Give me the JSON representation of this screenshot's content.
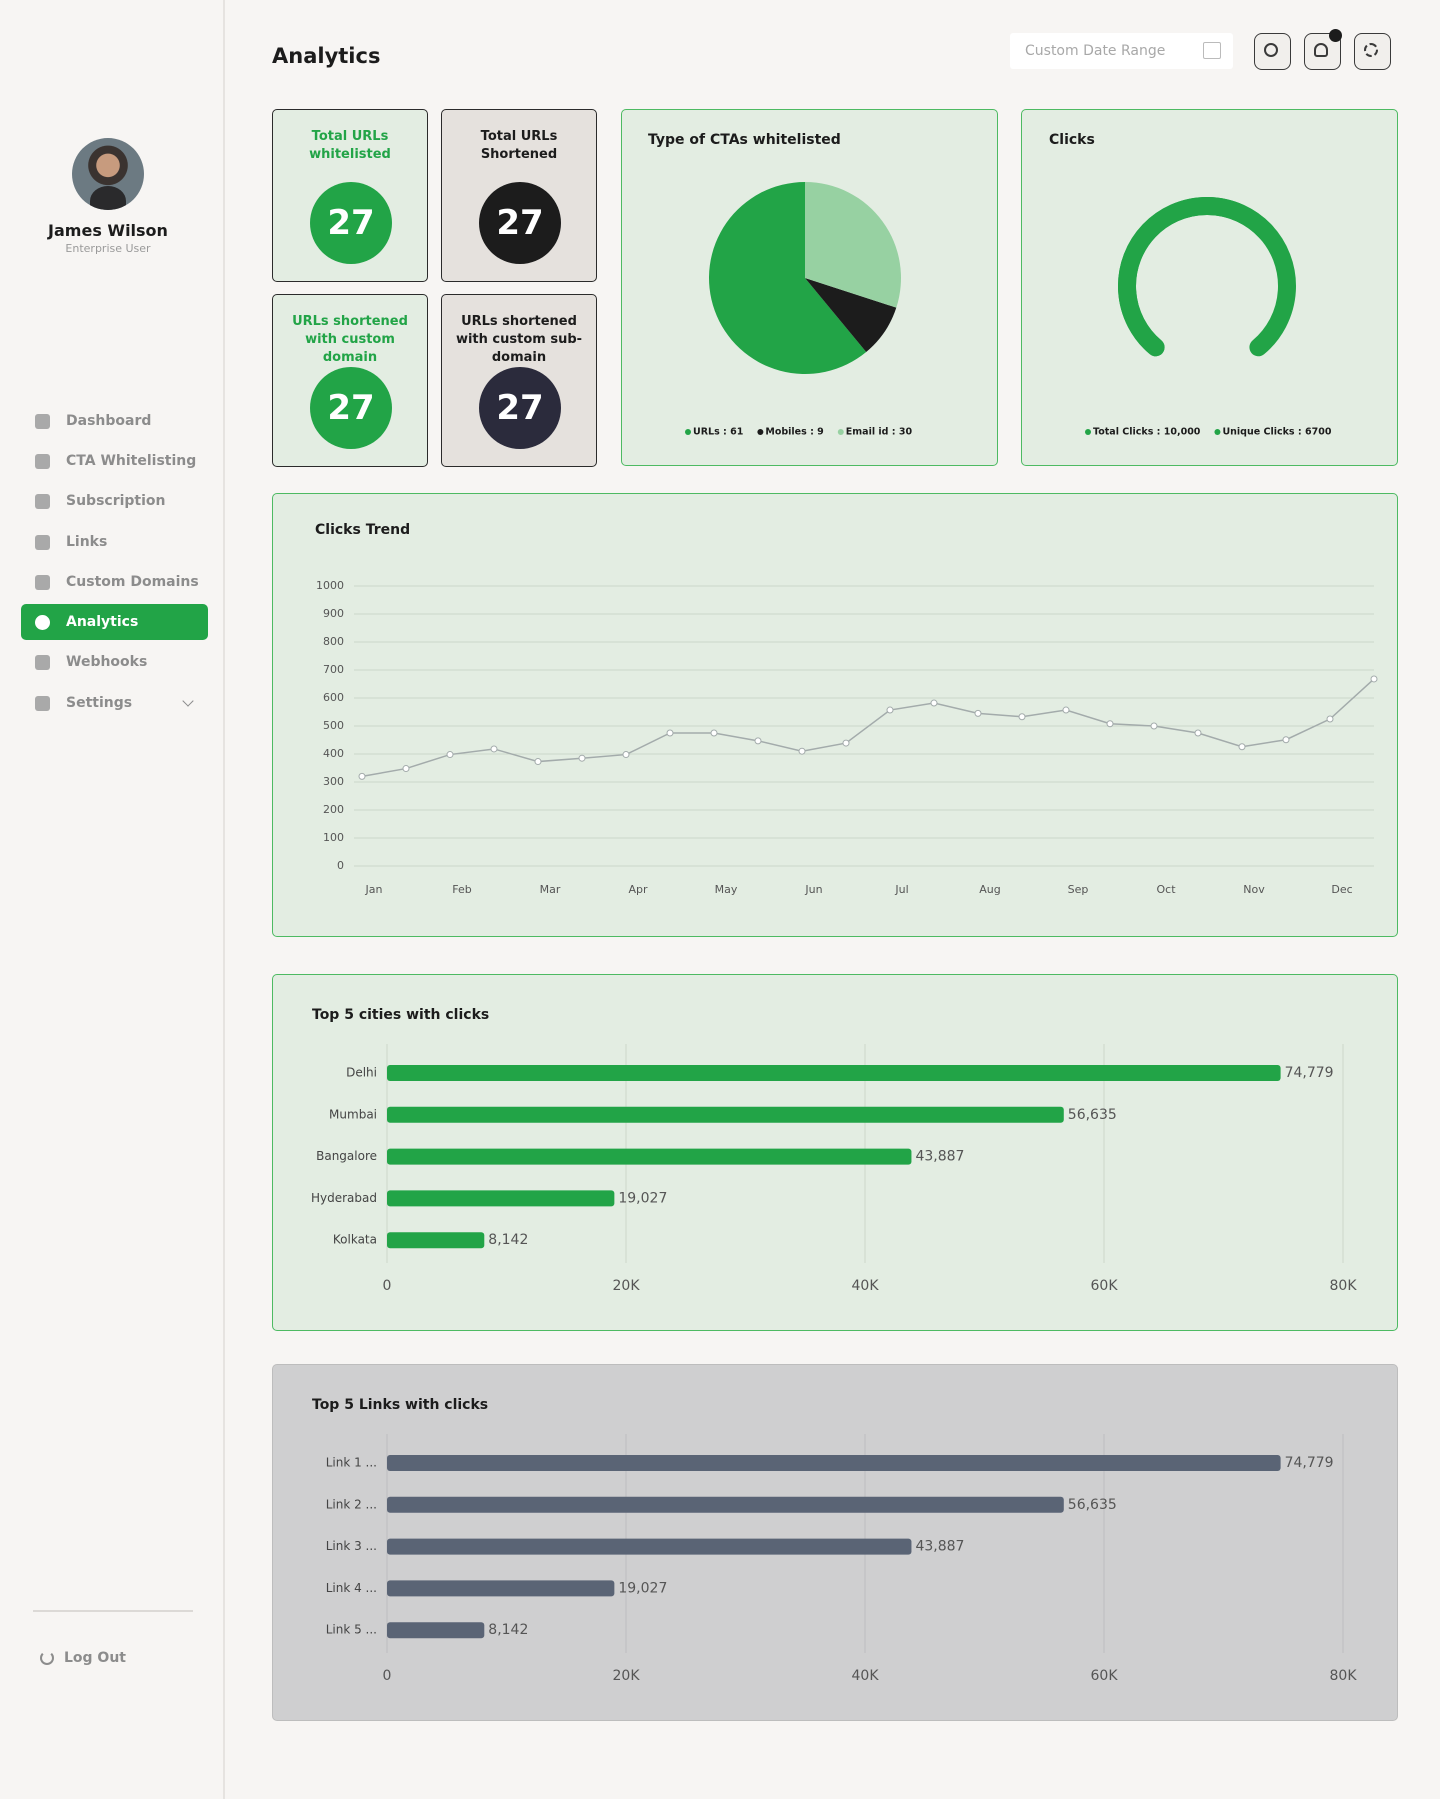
{
  "sidebar": {
    "user_name": "James Wilson",
    "user_role": "Enterprise User",
    "nav": [
      "Dashboard",
      "CTA Whitelisting",
      "Subscription",
      "Links",
      "Custom Domains",
      "Analytics",
      "Webhooks",
      "Settings"
    ],
    "logout": "Log Out"
  },
  "header": {
    "title": "Analytics",
    "date_placeholder": "Custom Date Range"
  },
  "cards": [
    {
      "title": "Total URLs whitelisted",
      "value": "27"
    },
    {
      "title": "Total URLs Shortened",
      "value": "27"
    },
    {
      "title": "URLs shortened with custom domain",
      "value": "27"
    },
    {
      "title": "URLs shortened with custom sub-domain",
      "value": "27"
    }
  ],
  "chart_data": [
    {
      "type": "pie",
      "title": "Type of CTAs whitelisted",
      "categories": [
        "URLs",
        "Mobiles",
        "Email id"
      ],
      "values": [
        61,
        9,
        30
      ],
      "value_labels": [
        "URLs : 61",
        "Mobiles : 9",
        "Email id : 30"
      ],
      "colors": [
        "#22a447",
        "#1c1c1c",
        "#97d1a2"
      ],
      "direction": "counterclockwise"
    },
    {
      "type": "gauge",
      "title": "Clicks",
      "categories": [
        "Total Clicks",
        "Unique Clicks"
      ],
      "values": [
        10000,
        6700
      ],
      "value_labels": [
        "Total Clicks : 10,000",
        "Unique Clicks : 6700"
      ],
      "colors": [
        "#22a447",
        "#22a447"
      ]
    },
    {
      "type": "line",
      "title": "Clicks Trend",
      "categories": [
        "Jan",
        null,
        "Feb",
        null,
        "Mar",
        null,
        "Apr",
        null,
        "May",
        null,
        "Jun",
        null,
        "Jul",
        null,
        "Aug",
        null,
        "Sep",
        null,
        "Oct",
        null,
        "Nov",
        null,
        "Dec",
        null
      ],
      "values": [
        320,
        348,
        398,
        418,
        373,
        385,
        398,
        475,
        475,
        447,
        410,
        439,
        557,
        582,
        545,
        533,
        557,
        508,
        500,
        475,
        426,
        451,
        525,
        668
      ],
      "color": "#a3abab",
      "ylim": [
        0,
        1000
      ],
      "yticks": [
        0,
        100,
        200,
        300,
        400,
        500,
        600,
        700,
        800,
        900,
        1000
      ],
      "grid": true
    },
    {
      "type": "hbar",
      "title": "Top 5 cities with clicks",
      "categories": [
        "Delhi",
        "Mumbai",
        "Bangalore",
        "Hyderabad",
        "Kolkata"
      ],
      "values": [
        74779,
        56635,
        43887,
        19027,
        8142
      ],
      "value_labels": [
        "74,779",
        "56,635",
        "43,887",
        "19,027",
        "8,142"
      ],
      "color": "#22a447",
      "xlim": [
        0,
        80000
      ],
      "xticks": [
        0,
        {
          "value": 20000,
          "label": "20K"
        },
        {
          "value": 40000,
          "label": "40K"
        },
        {
          "value": 60000,
          "label": "60K"
        },
        {
          "value": 80000,
          "label": "80K"
        }
      ],
      "grid": true
    },
    {
      "type": "hbar",
      "title": "Top 5 Links with clicks",
      "categories": [
        "Link 1 ...",
        "Link 2 ...",
        "Link 3 ...",
        "Link 4 ...",
        "Link 5 ..."
      ],
      "values": [
        74779,
        56635,
        43887,
        19027,
        8142
      ],
      "value_labels": [
        "74,779",
        "56,635",
        "43,887",
        "19,027",
        "8,142"
      ],
      "color": "#5a6475",
      "xlim": [
        0,
        80000
      ],
      "xticks": [
        0,
        {
          "value": 20000,
          "label": "20K"
        },
        {
          "value": 40000,
          "label": "40K"
        },
        {
          "value": 60000,
          "label": "60K"
        },
        {
          "value": 80000,
          "label": "80K"
        }
      ],
      "grid": true
    }
  ]
}
